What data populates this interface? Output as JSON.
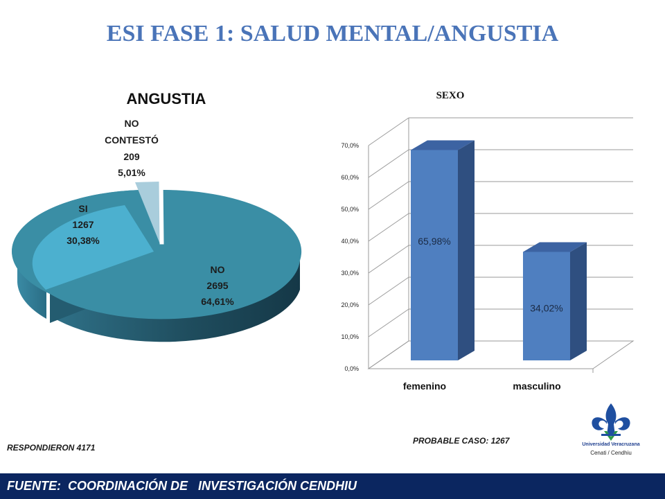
{
  "slide": {
    "title": "ESI FASE 1: SALUD MENTAL/ANGUSTIA",
    "note_left": "RESPONDIERON 4171",
    "note_right": "PROBABLE CASO:  1267",
    "footer": "FUENTE:  COORDINACIÓN DE   INVESTIGACIÓN CENDHIU",
    "logo": {
      "line1": "Universidad Veracruzana",
      "line2": "Cenati / Cendhiu",
      "icon": "fleur-de-lis-icon"
    }
  },
  "chart_data": [
    {
      "type": "pie",
      "title": "ANGUSTIA",
      "style": "3d-exploded",
      "labels": [
        {
          "name": "NO",
          "count": "2695",
          "pct": "64,61%"
        },
        {
          "name": "SI",
          "count": "1267",
          "pct": "30,38%"
        },
        {
          "name_lines": [
            "NO",
            "CONTESTÓ"
          ],
          "count": "209",
          "pct": "5,01%"
        }
      ],
      "values": [
        64.61,
        30.38,
        5.01
      ],
      "colors": [
        "#3a8ea5",
        "#4cb0cf",
        "#a9cddc"
      ]
    },
    {
      "type": "bar",
      "style": "3d",
      "title": "SEXO",
      "categories": [
        "femenino",
        "masculino"
      ],
      "values": [
        65.98,
        34.02
      ],
      "value_labels": [
        "65,98%",
        "34,02%"
      ],
      "ylim": [
        0,
        70
      ],
      "yticks": [
        "0,0%",
        "10,0%",
        "20,0%",
        "30,0%",
        "40,0%",
        "50,0%",
        "60,0%",
        "70,0%"
      ],
      "grid": true,
      "bar_color": "#4f7fc0"
    }
  ]
}
